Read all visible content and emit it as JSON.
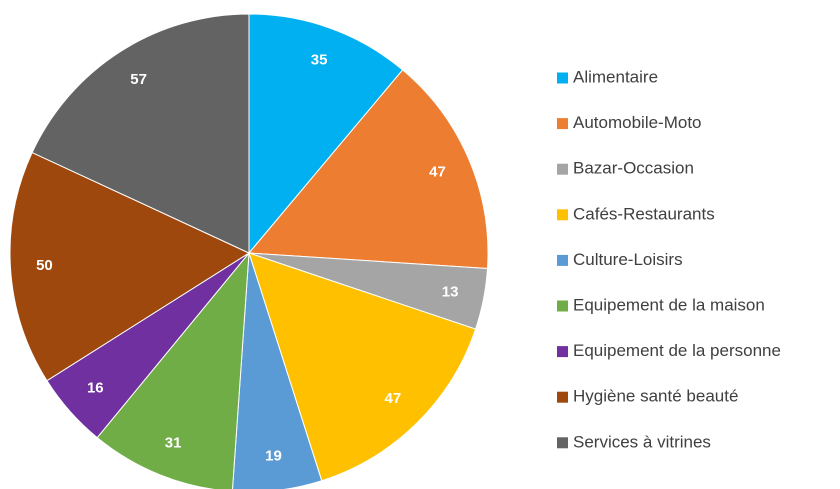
{
  "chart_data": {
    "type": "pie",
    "categories": [
      "Alimentaire",
      "Automobile-Moto",
      "Bazar-Occasion",
      "Cafés-Restaurants",
      "Culture-Loisirs",
      "Equipement de la maison",
      "Equipement de la personne",
      "Hygiène santé beauté",
      "Services à vitrines"
    ],
    "values": [
      35,
      47,
      13,
      47,
      19,
      31,
      16,
      50,
      57
    ],
    "colors": [
      "#00b0f0",
      "#ed7d31",
      "#a5a5a5",
      "#ffc000",
      "#5b9bd5",
      "#70ad47",
      "#7030a0",
      "#9e480e",
      "#636363"
    ],
    "legend": "right"
  }
}
